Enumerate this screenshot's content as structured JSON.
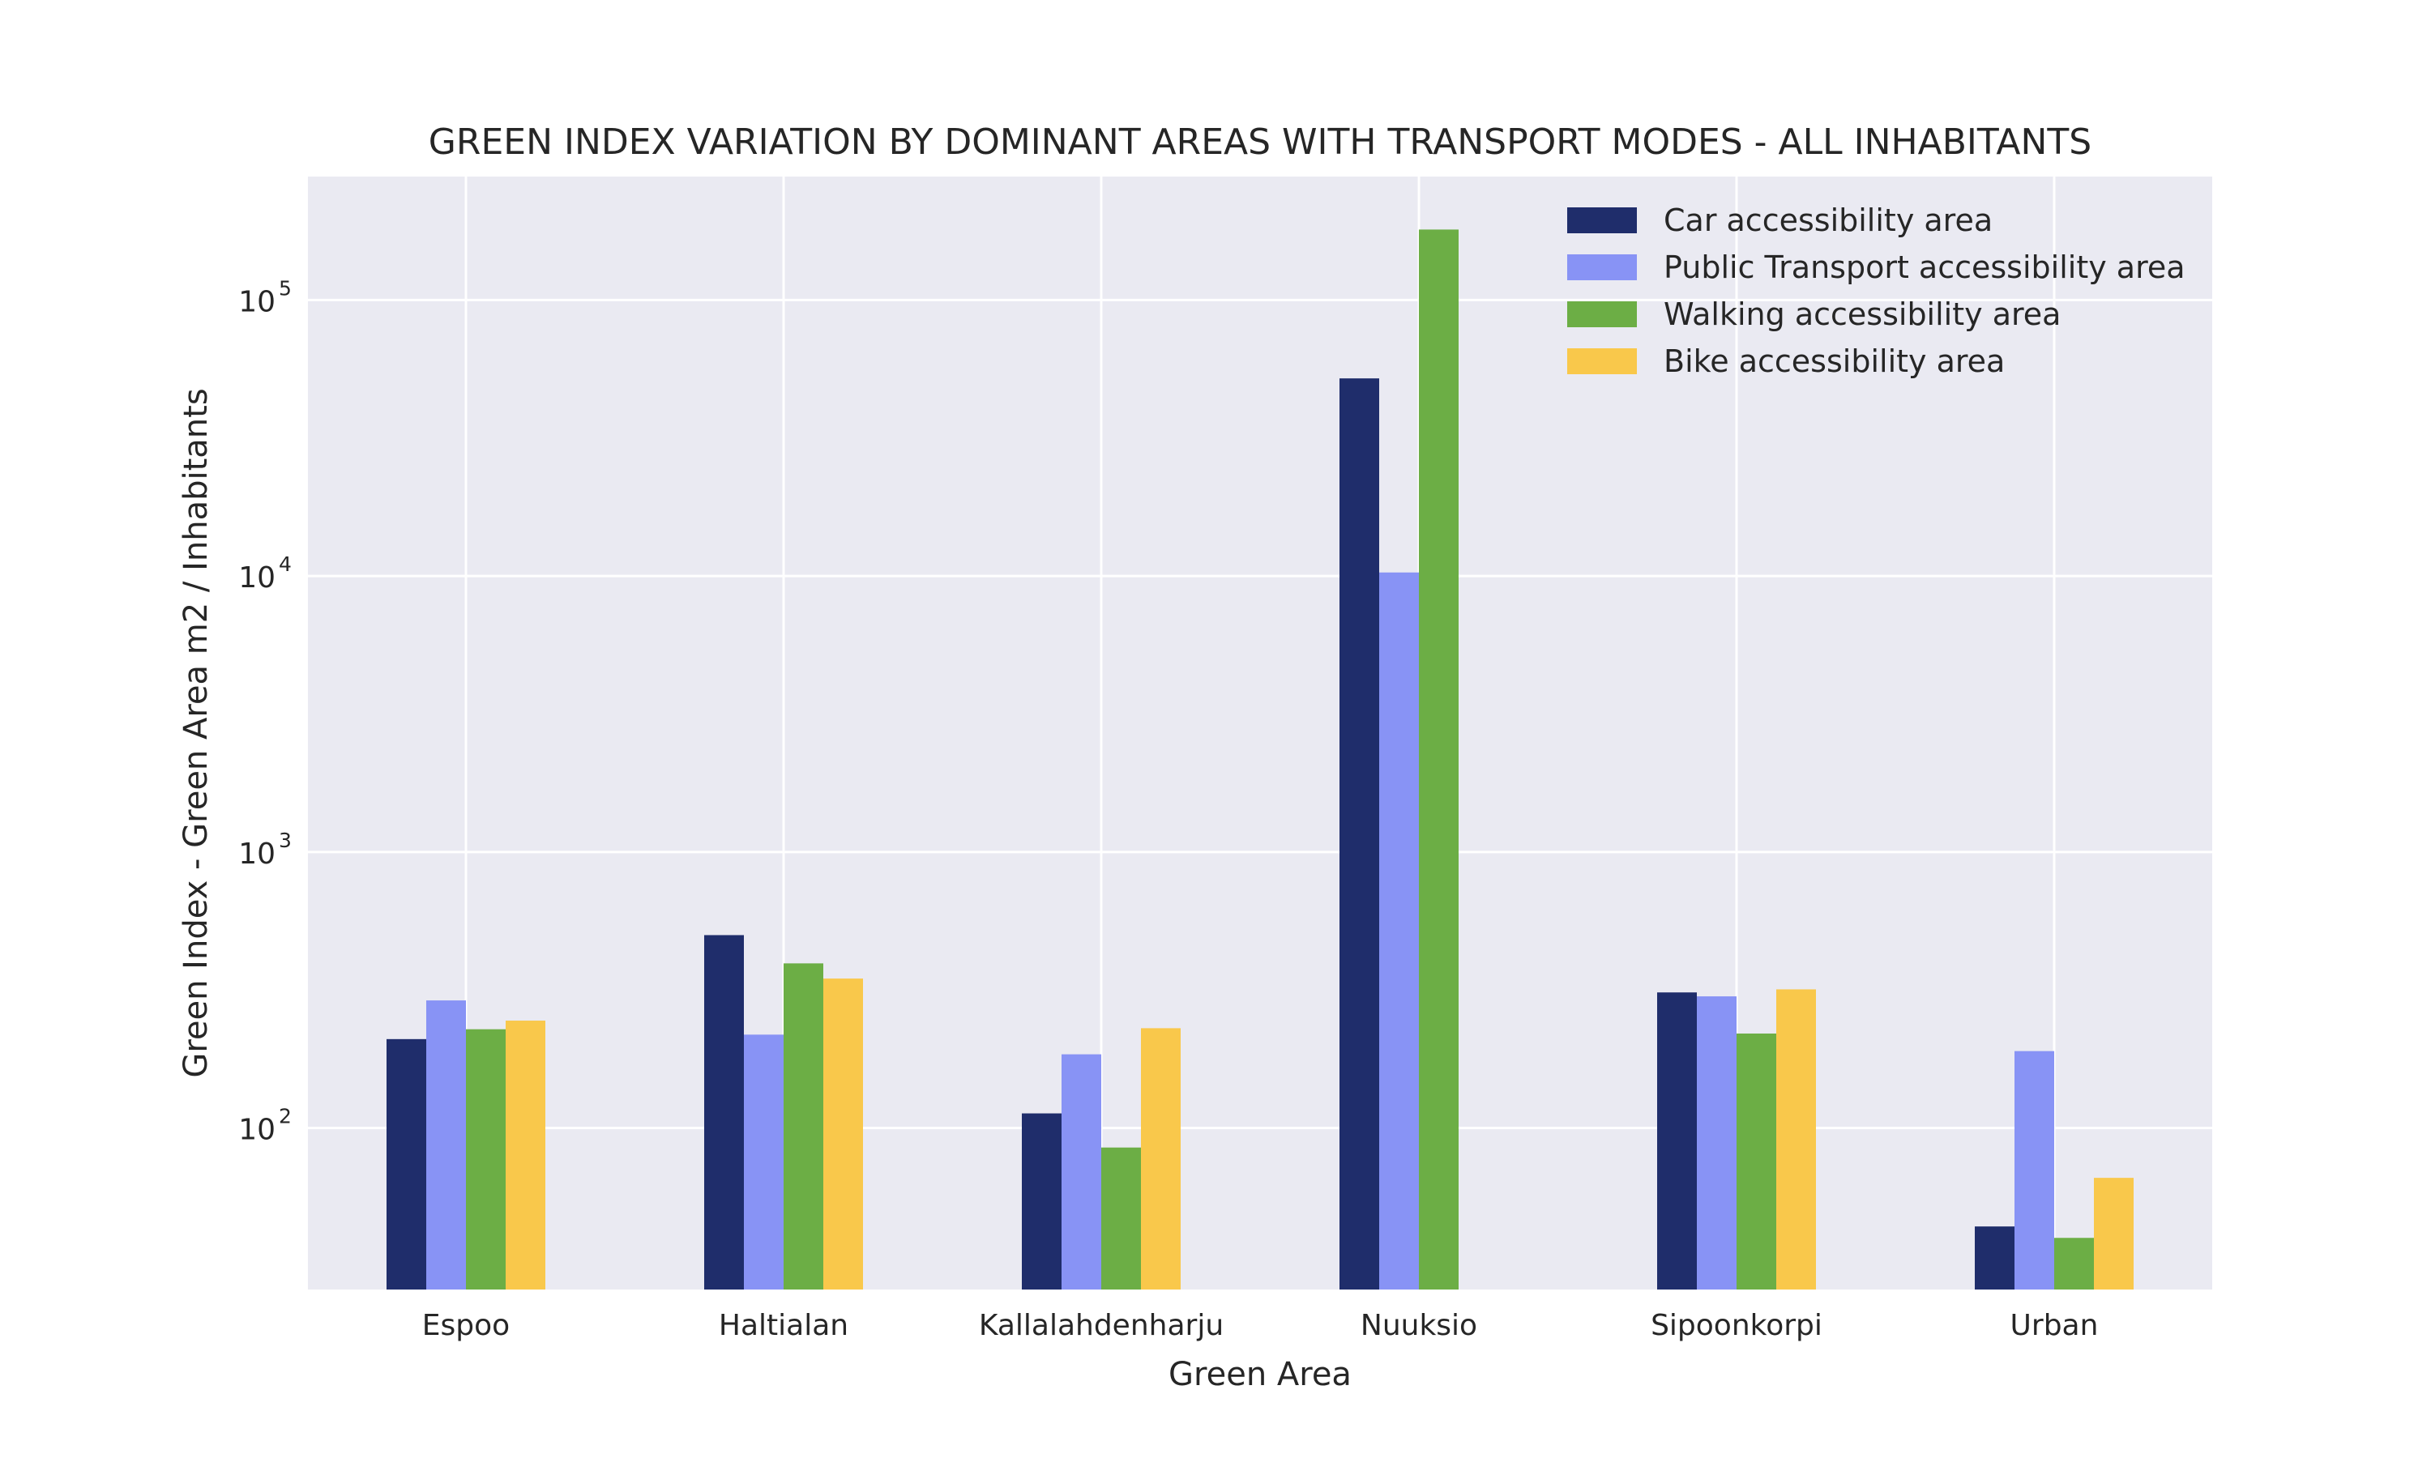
{
  "chart_data": {
    "type": "bar",
    "title": "GREEN INDEX VARIATION BY DOMINANT AREAS WITH TRANSPORT MODES - ALL INHABITANTS",
    "xlabel": "Green Area",
    "ylabel": "Green Index - Green Area m2 / Inhabitants",
    "yscale": "log",
    "ylim": [
      26,
      280000
    ],
    "yticks": [
      {
        "base": "10",
        "exp": "2",
        "value": 100
      },
      {
        "base": "10",
        "exp": "3",
        "value": 1000
      },
      {
        "base": "10",
        "exp": "4",
        "value": 10000
      },
      {
        "base": "10",
        "exp": "5",
        "value": 100000
      }
    ],
    "grid": true,
    "legend_position": "top-right",
    "categories": [
      "Espoo",
      "Haltialan",
      "Kallalahdenharju",
      "Nuuksio",
      "Sipoonkorpi",
      "Urban"
    ],
    "series": [
      {
        "name": "Car accessibility area",
        "color": "#1f2d6b",
        "values": [
          210,
          500,
          113,
          52000,
          310,
          44
        ]
      },
      {
        "name": "Public Transport accessibility area",
        "color": "#8893f5",
        "values": [
          290,
          218,
          185,
          10300,
          300,
          190
        ]
      },
      {
        "name": "Walking accessibility area",
        "color": "#6cae45",
        "values": [
          228,
          395,
          85,
          180000,
          220,
          40
        ]
      },
      {
        "name": "Bike accessibility area",
        "color": "#f9c84b",
        "values": [
          245,
          348,
          230,
          null,
          318,
          66
        ]
      }
    ]
  }
}
